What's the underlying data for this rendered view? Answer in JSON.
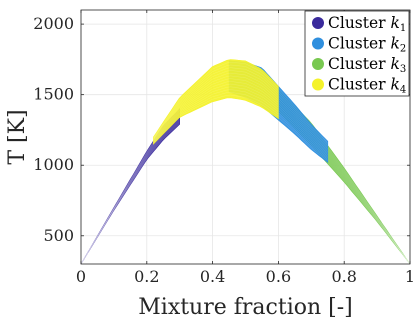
{
  "chart_data": {
    "type": "scatter",
    "xlabel": "Mixture fraction [-]",
    "ylabel": "T [K]",
    "xlim": [
      0,
      1
    ],
    "ylim": [
      300,
      2100
    ],
    "x_ticks": [
      0,
      0.2,
      0.4,
      0.6,
      0.8,
      1
    ],
    "x_tick_labels": [
      "0",
      "0.2",
      "0.4",
      "0.6",
      "0.8",
      "1"
    ],
    "y_ticks": [
      500,
      1000,
      1500,
      2000
    ],
    "y_tick_labels": [
      "500",
      "1000",
      "1500",
      "2000"
    ],
    "grid": true,
    "legend_position": "top-right",
    "series": [
      {
        "name": "Cluster k1",
        "legend_main": "Cluster ",
        "legend_var": "k",
        "legend_sub": "1",
        "color": "#3a2a9c",
        "x_range": [
          0.0,
          0.3
        ],
        "t_upper": [
          [
            0.0,
            300
          ],
          [
            0.1,
            700
          ],
          [
            0.2,
            1100
          ],
          [
            0.25,
            1280
          ],
          [
            0.3,
            1400
          ]
        ],
        "t_lower": [
          [
            0.0,
            300
          ],
          [
            0.1,
            680
          ],
          [
            0.2,
            1040
          ],
          [
            0.25,
            1180
          ],
          [
            0.3,
            1290
          ]
        ]
      },
      {
        "name": "Cluster k2",
        "legend_main": "Cluster ",
        "legend_var": "k",
        "legend_sub": "2",
        "color": "#2f8fde",
        "x_range": [
          0.45,
          0.75
        ],
        "t_upper": [
          [
            0.45,
            1740
          ],
          [
            0.5,
            1730
          ],
          [
            0.55,
            1690
          ],
          [
            0.6,
            1560
          ],
          [
            0.65,
            1430
          ],
          [
            0.7,
            1290
          ],
          [
            0.75,
            1170
          ]
        ],
        "t_lower": [
          [
            0.45,
            1520
          ],
          [
            0.5,
            1480
          ],
          [
            0.55,
            1420
          ],
          [
            0.6,
            1320
          ],
          [
            0.65,
            1220
          ],
          [
            0.7,
            1110
          ],
          [
            0.75,
            1020
          ]
        ]
      },
      {
        "name": "Cluster k3",
        "legend_main": "Cluster ",
        "legend_var": "k",
        "legend_sub": "3",
        "color": "#78c850",
        "x_range": [
          0.6,
          1.0
        ],
        "t_upper": [
          [
            0.6,
            1540
          ],
          [
            0.7,
            1300
          ],
          [
            0.8,
            980
          ],
          [
            0.9,
            640
          ],
          [
            1.0,
            300
          ]
        ],
        "t_lower": [
          [
            0.6,
            1380
          ],
          [
            0.7,
            1140
          ],
          [
            0.8,
            880
          ],
          [
            0.9,
            600
          ],
          [
            1.0,
            300
          ]
        ]
      },
      {
        "name": "Cluster k4",
        "legend_main": "Cluster ",
        "legend_var": "k",
        "legend_sub": "4",
        "color": "#f4f22a",
        "x_range": [
          0.22,
          0.6
        ],
        "t_upper": [
          [
            0.22,
            1200
          ],
          [
            0.3,
            1480
          ],
          [
            0.4,
            1700
          ],
          [
            0.45,
            1750
          ],
          [
            0.5,
            1740
          ],
          [
            0.55,
            1680
          ],
          [
            0.6,
            1560
          ]
        ],
        "t_lower": [
          [
            0.22,
            1150
          ],
          [
            0.3,
            1340
          ],
          [
            0.4,
            1450
          ],
          [
            0.45,
            1480
          ],
          [
            0.5,
            1460
          ],
          [
            0.55,
            1410
          ],
          [
            0.6,
            1330
          ]
        ]
      }
    ]
  }
}
